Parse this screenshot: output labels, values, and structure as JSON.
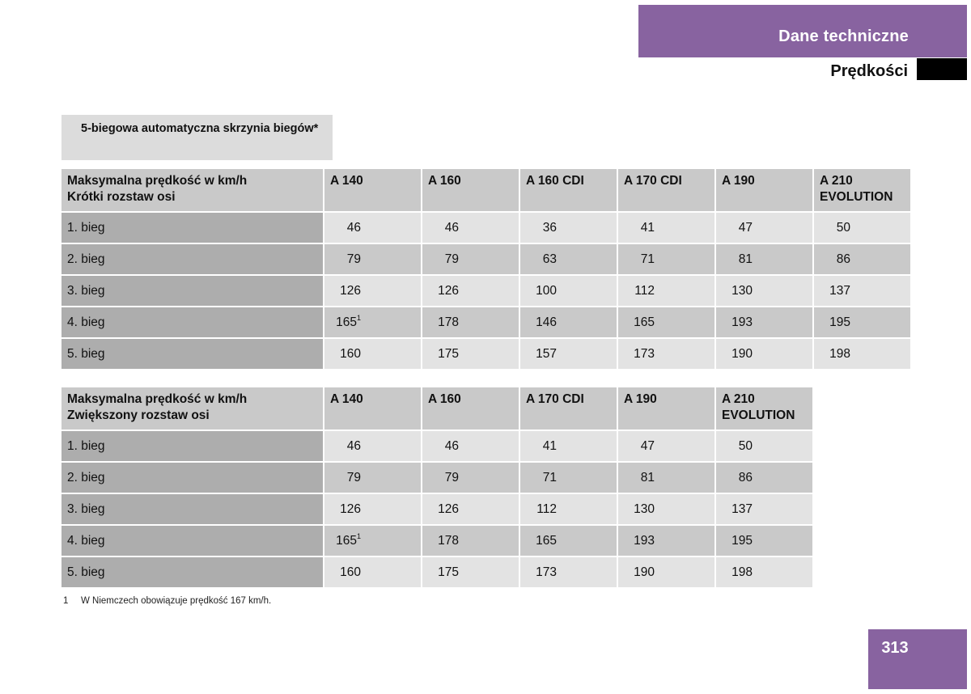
{
  "header": {
    "section_title": "Dane techniczne",
    "subheading": "Prędkości"
  },
  "transmission_label": "5-biegowa automatyczna skrzynia biegów*",
  "tables": [
    {
      "header": {
        "line1": "Maksymalna prędkość w km/h",
        "line2": "Krótki rozstaw osi"
      },
      "models": [
        "A 140",
        "A 160",
        "A 160 CDI",
        "A 170 CDI",
        "A 190",
        "A 210 EVOLUTION"
      ],
      "rows": [
        {
          "gear": "1. bieg",
          "values": [
            "46",
            "46",
            "36",
            "41",
            "47",
            "50"
          ]
        },
        {
          "gear": "2. bieg",
          "values": [
            "79",
            "79",
            "63",
            "71",
            "81",
            "86"
          ]
        },
        {
          "gear": "3. bieg",
          "values": [
            "126",
            "126",
            "100",
            "112",
            "130",
            "137"
          ]
        },
        {
          "gear": "4. bieg",
          "values": [
            "165",
            "178",
            "146",
            "165",
            "193",
            "195"
          ],
          "footnote_marks": [
            "1",
            "",
            "",
            "",
            "",
            ""
          ]
        },
        {
          "gear": "5. bieg",
          "values": [
            "160",
            "175",
            "157",
            "173",
            "190",
            "198"
          ]
        }
      ]
    },
    {
      "header": {
        "line1": "Maksymalna prędkość w km/h",
        "line2": "Zwiększony rozstaw osi"
      },
      "models": [
        "A 140",
        "A 160",
        "A 170 CDI",
        "A 190",
        "A 210 EVOLUTION"
      ],
      "rows": [
        {
          "gear": "1. bieg",
          "values": [
            "46",
            "46",
            "41",
            "47",
            "50"
          ]
        },
        {
          "gear": "2. bieg",
          "values": [
            "79",
            "79",
            "71",
            "81",
            "86"
          ]
        },
        {
          "gear": "3. bieg",
          "values": [
            "126",
            "126",
            "112",
            "130",
            "137"
          ]
        },
        {
          "gear": "4. bieg",
          "values": [
            "165",
            "178",
            "165",
            "193",
            "195"
          ],
          "footnote_marks": [
            "1",
            "",
            "",
            "",
            ""
          ]
        },
        {
          "gear": "5. bieg",
          "values": [
            "160",
            "175",
            "173",
            "190",
            "198"
          ]
        }
      ]
    }
  ],
  "footnote": {
    "number": "1",
    "text": "W Niemczech obowiązuje prędkość 167 km/h."
  },
  "page_number": "313",
  "colors": {
    "accent_purple": "#8863a0",
    "header_gray": "#c9c9c9",
    "gear_gray": "#adadad",
    "light_gray": "#e3e3e3"
  }
}
